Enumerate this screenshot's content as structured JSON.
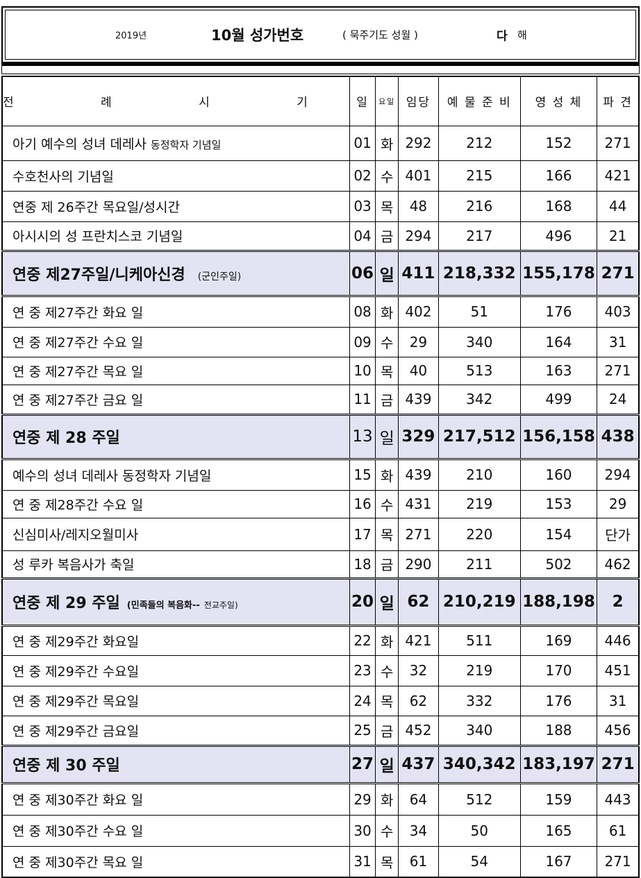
{
  "header": {
    "year": "2019년",
    "title": "10월 성가번호",
    "subtitle": "( 묵주기도  성월 )",
    "cycle_letter": "다",
    "cycle_suffix": "해"
  },
  "columns": [
    "전  례  시  기",
    "일",
    "요일",
    "임당",
    "예 물 준 비",
    "영 성 체",
    "파 견"
  ],
  "colors": {
    "sunday_row_bg": "#e3e3f3"
  },
  "rows": [
    {
      "name": "아기 예수의 성녀 데레사",
      "note": "동정학자 기념일",
      "day": "01",
      "weekday": "화",
      "entrance": "292",
      "offertory": "212",
      "communion": "152",
      "dismissal": "271"
    },
    {
      "name": "수호천사의  기념일",
      "day": "02",
      "weekday": "수",
      "entrance": "401",
      "offertory": "215",
      "communion": "166",
      "dismissal": "421"
    },
    {
      "name": "연중 제 26주간 목요일/성시간",
      "day": "03",
      "weekday": "목",
      "entrance": "48",
      "offertory": "216",
      "communion": "168",
      "dismissal": "44"
    },
    {
      "name": "아시시의 성 프란치스코 기념일",
      "day": "04",
      "weekday": "금",
      "entrance": "294",
      "offertory": "217",
      "communion": "496",
      "dismissal": "21"
    },
    {
      "sunday": true,
      "name": "연중 제27주일/니케아신경",
      "note": "(군인주일)",
      "day": "06",
      "weekday": "일",
      "entrance": "411",
      "offertory": "218,332",
      "communion": "155,178",
      "dismissal": "271"
    },
    {
      "name": "연 중  제27주간 화요 일",
      "day": "08",
      "weekday": "화",
      "entrance": "402",
      "offertory": "51",
      "communion": "176",
      "dismissal": "403"
    },
    {
      "name": "연 중  제27주간 수요 일",
      "day": "09",
      "weekday": "수",
      "entrance": "29",
      "offertory": "340",
      "communion": "164",
      "dismissal": "31"
    },
    {
      "name": "연 중  제27주간 목요 일",
      "day": "10",
      "weekday": "목",
      "entrance": "40",
      "offertory": "513",
      "communion": "163",
      "dismissal": "271"
    },
    {
      "name": "연 중  제27주간 금요 일",
      "day": "11",
      "weekday": "금",
      "entrance": "439",
      "offertory": "342",
      "communion": "499",
      "dismissal": "24"
    },
    {
      "sunday": true,
      "name": "연중 제 28 주일",
      "day": "13",
      "plainDay": true,
      "weekday": "일",
      "plainWeekday": true,
      "entrance": "329",
      "offertory": "217,512",
      "communion": "156,158",
      "dismissal": "438"
    },
    {
      "name": "예수의 성녀 데레사 동정학자 기념일",
      "day": "15",
      "weekday": "화",
      "entrance": "439",
      "offertory": "210",
      "communion": "160",
      "dismissal": "294"
    },
    {
      "name": "연 중  제28주간 수요 일",
      "day": "16",
      "weekday": "수",
      "entrance": "431",
      "offertory": "219",
      "communion": "153",
      "dismissal": "29"
    },
    {
      "name": "신심미사/레지오월미사",
      "day": "17",
      "weekday": "목",
      "entrance": "271",
      "offertory": "220",
      "communion": "154",
      "dismissal": "단가"
    },
    {
      "name": "성 루카 복음사가 축일",
      "day": "18",
      "weekday": "금",
      "entrance": "290",
      "offertory": "211",
      "communion": "502",
      "dismissal": "462"
    },
    {
      "sunday": true,
      "name": "연중 제 29 주일",
      "note": "(민족들의 복음화--",
      "note2": "전교주일)",
      "day": "20",
      "weekday": "일",
      "entrance": "62",
      "offertory": "210,219",
      "communion": "188,198",
      "dismissal": "2"
    },
    {
      "name": "연 중  제29주간 화요일",
      "day": "22",
      "weekday": "화",
      "entrance": "421",
      "offertory": "511",
      "communion": "169",
      "dismissal": "446"
    },
    {
      "name": "연 중  제29주간 수요일",
      "day": "23",
      "weekday": "수",
      "entrance": "32",
      "offertory": "219",
      "communion": "170",
      "dismissal": "451"
    },
    {
      "name": "연 중  제29주간 목요일",
      "day": "24",
      "weekday": "목",
      "entrance": "62",
      "offertory": "332",
      "communion": "176",
      "dismissal": "31"
    },
    {
      "name": "연 중  제29주간 금요일",
      "day": "25",
      "weekday": "금",
      "entrance": "452",
      "offertory": "340",
      "communion": "188",
      "dismissal": "456"
    },
    {
      "sunday": true,
      "name": "연중 제 30 주일",
      "day": "27",
      "weekday": "일",
      "entrance": "437",
      "offertory": "340,342",
      "communion": "183,197",
      "dismissal": "271"
    },
    {
      "name": "연 중  제30주간 화요 일",
      "day": "29",
      "weekday": "화",
      "entrance": "64",
      "offertory": "512",
      "communion": "159",
      "dismissal": "443"
    },
    {
      "name": "연 중  제30주간 수요 일",
      "day": "30",
      "weekday": "수",
      "entrance": "34",
      "offertory": "50",
      "communion": "165",
      "dismissal": "61"
    },
    {
      "name": "연 중  제30주간 목요 일",
      "day": "31",
      "weekday": "목",
      "entrance": "61",
      "offertory": "54",
      "communion": "167",
      "dismissal": "271"
    }
  ]
}
